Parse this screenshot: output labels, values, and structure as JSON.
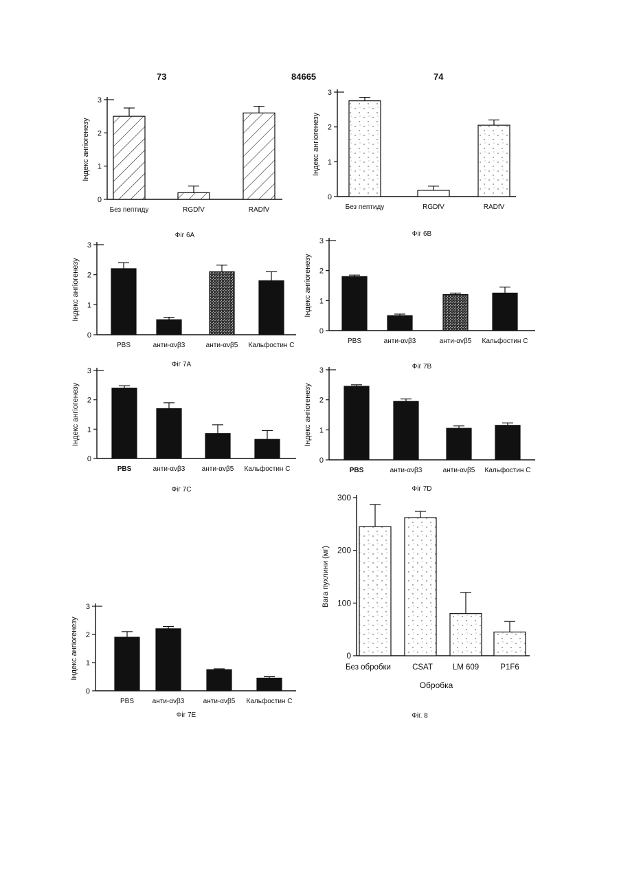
{
  "header": {
    "left": "73",
    "center": "84665",
    "right": "74"
  },
  "colors": {
    "ink": "#111111",
    "bar_solid": "#111111",
    "bar_open": "#ffffff"
  },
  "chart_data": [
    {
      "id": "fig6A",
      "type": "bar",
      "caption": "Фіг 6А",
      "ylabel": "Індекс ангіогенезу",
      "xlabel": "",
      "ylim": [
        0,
        3
      ],
      "yticks": [
        "0",
        "1",
        "2",
        "3"
      ],
      "categories": [
        "Без пептиду",
        "RGDfV",
        "RADfV"
      ],
      "values": [
        2.5,
        0.2,
        2.6
      ],
      "errors": [
        0.25,
        0.2,
        0.2
      ],
      "fills": [
        "hatch",
        "hatch",
        "hatch"
      ]
    },
    {
      "id": "fig6B",
      "type": "bar",
      "caption": "Фіг 6В",
      "ylabel": "Індекс ангіогенезу",
      "xlabel": "",
      "ylim": [
        0,
        3
      ],
      "yticks": [
        "0",
        "1",
        "2",
        "3"
      ],
      "categories": [
        "Без пептиду",
        "RGDfV",
        "RADfV"
      ],
      "values": [
        2.75,
        0.18,
        2.05
      ],
      "errors": [
        0.1,
        0.12,
        0.15
      ],
      "fills": [
        "dots",
        "white",
        "dots"
      ]
    },
    {
      "id": "fig7A",
      "type": "bar",
      "caption": "Фіг 7А",
      "ylabel": "Індекс ангіогенезу",
      "xlabel": "",
      "ylim": [
        0,
        3
      ],
      "yticks": [
        "0",
        "1",
        "2",
        "3"
      ],
      "categories": [
        "PBS",
        "анти-αvβ3",
        "анти-αvβ5",
        "Кальфостин С"
      ],
      "values": [
        2.2,
        0.5,
        2.1,
        1.8
      ],
      "errors": [
        0.2,
        0.08,
        0.22,
        0.3
      ],
      "fills": [
        "solid",
        "solid",
        "texture",
        "solid"
      ]
    },
    {
      "id": "fig7B",
      "type": "bar",
      "caption": "Фіг 7В",
      "ylabel": "Індекс ангіогенезу",
      "xlabel": "",
      "ylim": [
        0,
        3
      ],
      "yticks": [
        "0",
        "1",
        "2",
        "3"
      ],
      "categories": [
        "PBS",
        "анти-αvβ3",
        "анти-αvβ5",
        "Кальфостин С"
      ],
      "values": [
        1.8,
        0.5,
        1.2,
        1.25
      ],
      "errors": [
        0.05,
        0.05,
        0.05,
        0.2
      ],
      "fills": [
        "solid",
        "solid",
        "texture",
        "solid"
      ]
    },
    {
      "id": "fig7C",
      "type": "bar",
      "caption": "Фіг 7С",
      "ylabel": "Індекс ангіогенезу",
      "xlabel": "",
      "ylim": [
        0,
        3
      ],
      "yticks": [
        "0",
        "1",
        "2",
        "3"
      ],
      "categories": [
        "PBS",
        "анти-αvβ3",
        "анти-αvβ5",
        "Кальфостин С"
      ],
      "values": [
        2.4,
        1.7,
        0.85,
        0.65
      ],
      "errors": [
        0.08,
        0.2,
        0.3,
        0.3
      ],
      "fills": [
        "solid",
        "solid",
        "solid",
        "solid"
      ]
    },
    {
      "id": "fig7D",
      "type": "bar",
      "caption": "Фіг 7D",
      "ylabel": "Індекс ангіогенезу",
      "xlabel": "",
      "ylim": [
        0,
        3
      ],
      "yticks": [
        "0",
        "1",
        "2",
        "3"
      ],
      "categories": [
        "PBS",
        "анти-αvβ3",
        "анти-αvβ5",
        "Кальфостин С"
      ],
      "values": [
        2.45,
        1.95,
        1.05,
        1.15
      ],
      "errors": [
        0.05,
        0.08,
        0.08,
        0.08
      ],
      "fills": [
        "solid",
        "solid",
        "solid",
        "solid"
      ]
    },
    {
      "id": "fig7E",
      "type": "bar",
      "caption": "Фіг 7Е",
      "ylabel": "Індекс ангіогенезу",
      "xlabel": "",
      "ylim": [
        0,
        3
      ],
      "yticks": [
        "0",
        "1",
        "2",
        "3"
      ],
      "categories": [
        "PBS",
        "анти-αvβ3",
        "анти-αvβ5",
        "Кальфостин С"
      ],
      "values": [
        1.9,
        2.2,
        0.75,
        0.45
      ],
      "errors": [
        0.2,
        0.08,
        0.03,
        0.05
      ],
      "fills": [
        "solid",
        "solid",
        "solid",
        "solid"
      ]
    },
    {
      "id": "fig8",
      "type": "bar",
      "caption": "Фіг. 8",
      "ylabel": "Вага пухлини (мг)",
      "xlabel": "Обробка",
      "ylim": [
        0,
        300
      ],
      "yticks": [
        "0",
        "100",
        "200",
        "300"
      ],
      "categories": [
        "Без обробки",
        "CSAT",
        "LM 609",
        "P1F6"
      ],
      "values": [
        245,
        262,
        80,
        45
      ],
      "errors": [
        42,
        12,
        40,
        20
      ],
      "fills": [
        "dots",
        "dots",
        "dots",
        "dots"
      ]
    }
  ]
}
